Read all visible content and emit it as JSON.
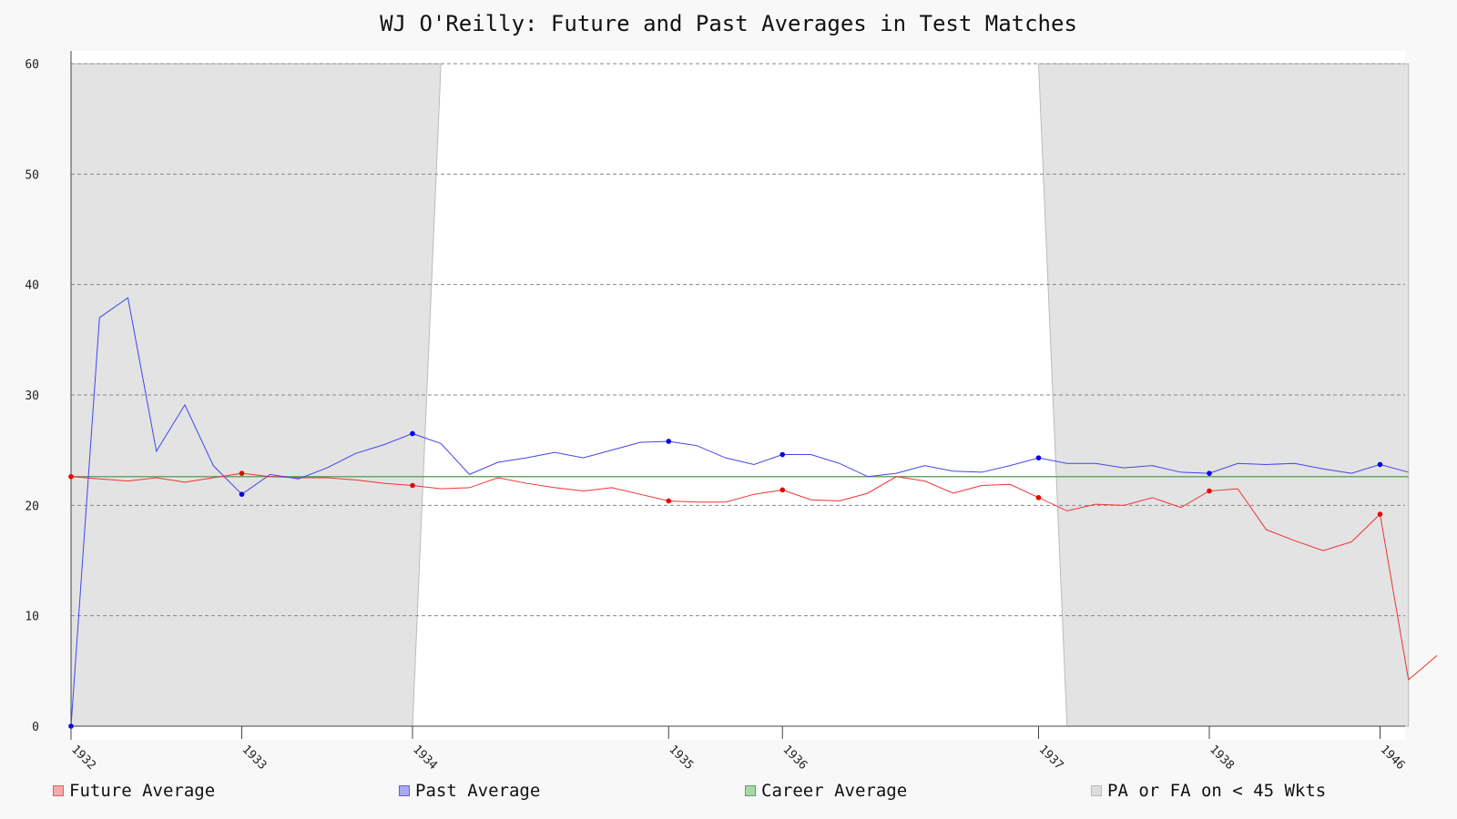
{
  "chart_data": {
    "type": "line",
    "title": "WJ O'Reilly: Future and Past Averages in Test Matches",
    "ylim": [
      0,
      60
    ],
    "yticks": [
      0,
      10,
      20,
      30,
      40,
      50,
      60
    ],
    "grid": true,
    "legend_position": "bottom",
    "xlim": [
      0,
      47
    ],
    "x_tick_labels": [
      {
        "x": 0,
        "label": "1932"
      },
      {
        "x": 6,
        "label": "1933"
      },
      {
        "x": 12,
        "label": "1934"
      },
      {
        "x": 21,
        "label": "1935"
      },
      {
        "x": 25,
        "label": "1936"
      },
      {
        "x": 34,
        "label": "1937"
      },
      {
        "x": 40,
        "label": "1938"
      },
      {
        "x": 46,
        "label": "1946"
      }
    ],
    "series": [
      {
        "name": "Future Average",
        "color": "#ee3333",
        "marker_color": "#ee0000",
        "values": [
          22.6,
          22.4,
          22.2,
          22.5,
          22.1,
          22.5,
          22.9,
          22.6,
          22.5,
          22.5,
          22.3,
          22.0,
          21.8,
          21.5,
          21.6,
          22.5,
          22.0,
          21.6,
          21.3,
          21.6,
          21.0,
          20.4,
          20.3,
          20.3,
          21.0,
          21.4,
          20.5,
          20.4,
          21.1,
          22.6,
          22.2,
          21.1,
          21.8,
          21.9,
          20.7,
          19.5,
          20.1,
          20.0,
          20.7,
          19.8,
          21.3,
          21.5,
          17.8,
          16.8,
          15.9,
          16.7,
          19.2,
          4.2,
          6.4
        ],
        "x_offset": 0,
        "markers_x": [
          0,
          6,
          12,
          21,
          25,
          34,
          40,
          46
        ]
      },
      {
        "name": "Past Average",
        "color": "#4444ee",
        "marker_color": "#0000ee",
        "values": [
          0,
          37.0,
          38.8,
          24.9,
          29.1,
          23.6,
          21.0,
          22.8,
          22.4,
          23.4,
          24.7,
          25.5,
          26.5,
          25.6,
          22.8,
          23.9,
          24.3,
          24.8,
          24.3,
          25.0,
          25.7,
          25.8,
          25.4,
          24.3,
          23.7,
          24.6,
          24.6,
          23.8,
          22.6,
          22.9,
          23.6,
          23.1,
          23.0,
          23.6,
          24.3,
          23.8,
          23.8,
          23.4,
          23.6,
          23.0,
          22.9,
          23.8,
          23.7,
          23.8,
          23.3,
          22.9,
          23.7,
          23.0
        ],
        "markers_x": [
          0,
          6,
          12,
          21,
          25,
          34,
          40,
          46
        ]
      },
      {
        "name": "Career Average",
        "color": "#66aa66",
        "value": 22.6
      },
      {
        "name": "PA or FA on < 45 Wkts",
        "color": "#dddddd"
      }
    ],
    "shaded_regions": [
      {
        "start": 0,
        "end_bottom": 12,
        "end_top": 13
      },
      {
        "start_top": 34,
        "start_bottom": 35,
        "end": 47
      }
    ]
  }
}
